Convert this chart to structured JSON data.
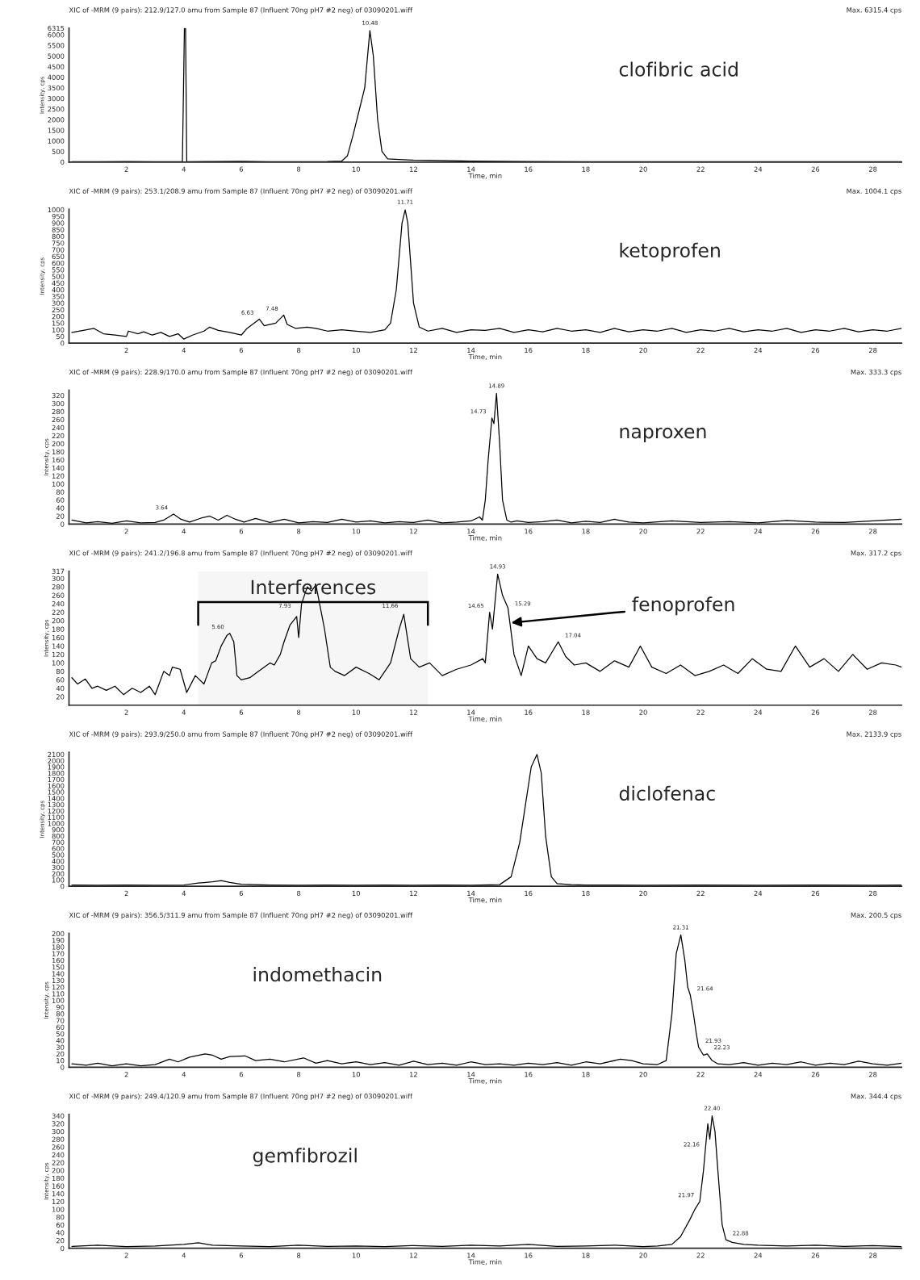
{
  "chart_data": [
    {
      "type": "line",
      "title": "XIC of -MRM (9 pairs): 212.9/127.0 amu from Sample 87 (Influent 70ng pH7 #2 neg) of 03090201.wiff",
      "subtitle": "Max. 6315.4 cps",
      "xlabel": "Time, min",
      "ylabel": "Intensity, cps",
      "xlim": [
        0,
        29
      ],
      "xticks": [
        2,
        4,
        6,
        8,
        10,
        12,
        14,
        16,
        18,
        20,
        22,
        24,
        26,
        28
      ],
      "ylim": [
        0,
        6315
      ],
      "yticks": [
        0,
        500,
        1000,
        1500,
        2000,
        2500,
        3000,
        3500,
        4000,
        4500,
        5000,
        5500,
        6000,
        {
          "value": 6315,
          "label": "6315"
        }
      ],
      "grid": false,
      "legend": false,
      "annotations": [
        "clofibric acid",
        {
          "text": "10.48",
          "x": 10.48,
          "y": 6200
        }
      ],
      "series": [
        {
          "color": "#000000",
          "x": [
            0.1,
            1,
            2,
            3,
            3.95,
            4.02,
            4.06,
            4.1,
            5,
            6,
            7,
            8,
            9,
            9.5,
            9.7,
            9.9,
            10.1,
            10.3,
            10.48,
            10.6,
            10.75,
            10.9,
            11.1,
            11.5,
            12,
            13,
            14,
            15,
            16,
            18,
            20,
            22,
            24,
            26,
            28,
            29
          ],
          "values": [
            20,
            20,
            30,
            20,
            20,
            6315,
            6315,
            20,
            30,
            40,
            20,
            20,
            30,
            50,
            300,
            1300,
            2400,
            3500,
            6200,
            5000,
            2000,
            500,
            150,
            120,
            90,
            70,
            50,
            40,
            30,
            20,
            20,
            20,
            20,
            20,
            20,
            20
          ]
        }
      ]
    },
    {
      "type": "line",
      "title": "XIC of -MRM (9 pairs): 253.1/208.9 amu from Sample 87 (Influent 70ng pH7 #2 neg) of 03090201.wiff",
      "subtitle": "Max. 1004.1 cps",
      "xlabel": "Time, min",
      "ylabel": "Intensity, cps",
      "xlim": [
        0,
        29
      ],
      "xticks": [
        2,
        4,
        6,
        8,
        10,
        12,
        14,
        16,
        18,
        20,
        22,
        24,
        26,
        28
      ],
      "ylim": [
        0,
        1004
      ],
      "yticks": [
        0,
        50,
        100,
        150,
        200,
        250,
        300,
        350,
        400,
        450,
        500,
        550,
        600,
        650,
        700,
        750,
        800,
        850,
        900,
        950,
        1000
      ],
      "grid": false,
      "legend": false,
      "annotations": [
        "ketoprofen",
        {
          "text": "11.71",
          "x": 11.71,
          "y": 1000
        },
        {
          "text": "7.48",
          "x": 7.48,
          "y": 210
        },
        {
          "text": "6.63",
          "x": 6.63,
          "y": 180
        }
      ],
      "series": [
        {
          "color": "#000000",
          "x": [
            0.1,
            0.5,
            0.87,
            1.2,
            1.6,
            2.0,
            2.07,
            2.4,
            2.6,
            2.9,
            3.2,
            3.5,
            3.8,
            4.0,
            4.3,
            4.7,
            4.9,
            5.2,
            5.6,
            6.0,
            6.2,
            6.63,
            6.8,
            7.2,
            7.48,
            7.6,
            7.9,
            8.3,
            8.6,
            9.0,
            9.5,
            10.0,
            10.5,
            11.0,
            11.2,
            11.4,
            11.6,
            11.71,
            11.8,
            12.0,
            12.2,
            12.5,
            13.0,
            13.5,
            14.0,
            14.5,
            15.0,
            15.5,
            16.0,
            16.5,
            17.0,
            17.5,
            18.0,
            18.5,
            19.0,
            19.5,
            20,
            20.5,
            21,
            21.5,
            22,
            22.5,
            23,
            23.5,
            24,
            24.5,
            25,
            25.5,
            26,
            26.5,
            27,
            27.5,
            28,
            28.5,
            29
          ],
          "values": [
            80,
            95,
            110,
            70,
            60,
            50,
            90,
            70,
            85,
            60,
            80,
            50,
            70,
            30,
            60,
            90,
            120,
            95,
            80,
            60,
            110,
            180,
            130,
            150,
            210,
            140,
            110,
            120,
            110,
            90,
            100,
            90,
            80,
            100,
            150,
            400,
            900,
            1000,
            900,
            300,
            120,
            90,
            110,
            80,
            100,
            95,
            110,
            80,
            100,
            85,
            110,
            90,
            100,
            80,
            110,
            85,
            100,
            90,
            110,
            80,
            100,
            90,
            110,
            85,
            100,
            90,
            110,
            80,
            100,
            90,
            110,
            85,
            100,
            90,
            110
          ]
        }
      ]
    },
    {
      "type": "line",
      "title": "XIC of -MRM (9 pairs): 228.9/170.0 amu from Sample 87 (Influent 70ng pH7 #2 neg) of 03090201.wiff",
      "subtitle": "Max. 333.3 cps",
      "xlabel": "Time, min",
      "ylabel": "Intensity, cps",
      "xlim": [
        0,
        29
      ],
      "xticks": [
        2,
        4,
        6,
        8,
        10,
        12,
        14,
        16,
        18,
        20,
        22,
        24,
        26,
        28
      ],
      "ylim": [
        0,
        333
      ],
      "yticks": [
        0,
        20,
        40,
        60,
        80,
        100,
        120,
        140,
        160,
        180,
        200,
        220,
        240,
        260,
        280,
        300,
        320
      ],
      "grid": false,
      "legend": false,
      "annotations": [
        "naproxen",
        {
          "text": "14.89",
          "x": 14.89,
          "y": 325
        },
        {
          "text": "14.73",
          "x": 14.73,
          "y": 264
        },
        {
          "text": "3.64",
          "x": 3.64,
          "y": 25
        }
      ],
      "series": [
        {
          "color": "#000000",
          "x": [
            0.1,
            0.6,
            1.0,
            1.5,
            2.0,
            2.5,
            3.0,
            3.3,
            3.64,
            3.9,
            4.2,
            4.6,
            4.9,
            5.2,
            5.5,
            5.8,
            6.1,
            6.5,
            7.0,
            7.5,
            8.0,
            8.5,
            9.0,
            9.5,
            10.0,
            10.5,
            11.0,
            11.5,
            12.0,
            12.5,
            13.0,
            13.5,
            14.0,
            14.3,
            14.4,
            14.5,
            14.6,
            14.73,
            14.8,
            14.89,
            15.0,
            15.1,
            15.25,
            15.4,
            15.6,
            16,
            16.5,
            17,
            17.5,
            18,
            18.5,
            19,
            19.5,
            20,
            21,
            22,
            23,
            24,
            25,
            26,
            27,
            28,
            29
          ],
          "values": [
            10,
            3,
            6,
            2,
            8,
            3,
            4,
            10,
            25,
            12,
            5,
            15,
            20,
            10,
            22,
            12,
            5,
            14,
            4,
            12,
            3,
            6,
            4,
            12,
            5,
            8,
            3,
            6,
            4,
            10,
            3,
            5,
            8,
            18,
            10,
            60,
            160,
            264,
            250,
            325,
            200,
            60,
            10,
            5,
            8,
            4,
            6,
            10,
            3,
            7,
            4,
            12,
            5,
            3,
            8,
            4,
            6,
            3,
            9,
            5,
            4,
            8,
            12
          ]
        }
      ]
    },
    {
      "type": "line",
      "title": "XIC of -MRM (9 pairs): 241.2/196.8 amu from Sample 87 (Influent 70ng pH7 #2 neg) of 03090201.wiff",
      "subtitle": "Max. 317.2 cps",
      "xlabel": "Time, min",
      "ylabel": "Intensity, cps",
      "xlim": [
        0,
        29
      ],
      "xticks": [
        2,
        4,
        6,
        8,
        10,
        12,
        14,
        16,
        18,
        20,
        22,
        24,
        26,
        28
      ],
      "ylim": [
        0,
        317
      ],
      "yticks": [
        20,
        40,
        60,
        80,
        100,
        120,
        140,
        160,
        180,
        200,
        220,
        240,
        260,
        280,
        300,
        {
          "value": 317,
          "label": "317"
        }
      ],
      "grid": false,
      "legend": false,
      "annotations": [
        {
          "text": "fenoprofen",
          "x": 15.4,
          "y": 195
        },
        {
          "text": "14.93",
          "x": 14.93,
          "y": 310
        },
        {
          "text": "15.29",
          "x": 15.29,
          "y": 225
        },
        {
          "text": "14.65",
          "x": 14.65,
          "y": 220
        },
        {
          "text": "11.66",
          "x": 11.66,
          "y": 220
        },
        {
          "text": "7.93",
          "x": 7.93,
          "y": 220
        },
        {
          "text": "17.04",
          "x": 17.04,
          "y": 150
        },
        {
          "text": "5.60",
          "x": 5.6,
          "y": 170
        }
      ],
      "bands": [
        {
          "axis": "x",
          "from": 4.5,
          "to": 12.5,
          "label": "Interferences"
        }
      ],
      "series": [
        {
          "color": "#000000",
          "x": [
            0.1,
            0.3,
            0.57,
            0.8,
            1.0,
            1.3,
            1.6,
            1.9,
            2.2,
            2.5,
            2.8,
            3.0,
            3.3,
            3.5,
            3.6,
            3.87,
            4.1,
            4.4,
            4.7,
            4.97,
            5.11,
            5.3,
            5.5,
            5.6,
            5.74,
            5.85,
            6.0,
            6.3,
            6.6,
            7.0,
            7.15,
            7.36,
            7.49,
            7.7,
            7.93,
            8.0,
            8.1,
            8.3,
            8.45,
            8.6,
            8.9,
            9.1,
            9.27,
            9.6,
            10.0,
            10.45,
            10.8,
            11.2,
            11.5,
            11.66,
            11.9,
            12.2,
            12.56,
            13.0,
            13.5,
            14.0,
            14.41,
            14.5,
            14.65,
            14.75,
            14.93,
            15.1,
            15.29,
            15.5,
            15.75,
            16.0,
            16.3,
            16.6,
            17.04,
            17.3,
            17.6,
            18.0,
            18.5,
            19.0,
            19.5,
            19.9,
            20.3,
            20.8,
            21.3,
            21.8,
            22.3,
            22.8,
            23.3,
            23.8,
            24.3,
            24.8,
            25.3,
            25.8,
            26.3,
            26.8,
            27.3,
            27.8,
            28.3,
            28.8,
            29
          ],
          "values": [
            65,
            50,
            62,
            40,
            45,
            35,
            45,
            25,
            40,
            30,
            45,
            25,
            80,
            70,
            90,
            85,
            30,
            70,
            50,
            100,
            105,
            140,
            165,
            170,
            150,
            70,
            60,
            65,
            80,
            100,
            95,
            120,
            150,
            190,
            210,
            160,
            240,
            280,
            270,
            285,
            180,
            90,
            80,
            70,
            90,
            75,
            60,
            100,
            180,
            215,
            110,
            90,
            100,
            70,
            85,
            95,
            110,
            100,
            220,
            180,
            310,
            260,
            230,
            120,
            70,
            140,
            110,
            100,
            150,
            115,
            95,
            100,
            80,
            105,
            90,
            140,
            90,
            75,
            95,
            70,
            80,
            95,
            75,
            110,
            85,
            80,
            140,
            90,
            110,
            80,
            120,
            85,
            100,
            95,
            90
          ]
        }
      ]
    },
    {
      "type": "line",
      "title": "XIC of -MRM (9 pairs): 293.9/250.0 amu from Sample 87 (Influent 70ng pH7 #2 neg) of 03090201.wiff",
      "subtitle": "Max. 2133.9 cps",
      "xlabel": "Time, min",
      "ylabel": "Intensity, cps",
      "xlim": [
        0,
        29
      ],
      "xticks": [
        2,
        4,
        6,
        8,
        10,
        12,
        14,
        16,
        18,
        20,
        22,
        24,
        26,
        28
      ],
      "ylim": [
        0,
        2134
      ],
      "yticks": [
        0,
        100,
        200,
        300,
        400,
        500,
        600,
        700,
        800,
        900,
        1000,
        1100,
        1200,
        1300,
        1400,
        1500,
        1600,
        1700,
        1800,
        1900,
        2000,
        2100
      ],
      "grid": false,
      "legend": false,
      "annotations": [
        "diclofenac"
      ],
      "series": [
        {
          "color": "#000000",
          "x": [
            0.1,
            1,
            2,
            3,
            4,
            4.5,
            5.0,
            5.3,
            5.6,
            6.0,
            7,
            8,
            9,
            10,
            11,
            12,
            13,
            14,
            15,
            15.4,
            15.7,
            15.9,
            16.1,
            16.3,
            16.45,
            16.6,
            16.8,
            17.0,
            17.5,
            18,
            20,
            22,
            24,
            26,
            28,
            29
          ],
          "values": [
            20,
            15,
            20,
            15,
            20,
            50,
            70,
            90,
            60,
            30,
            20,
            15,
            20,
            15,
            20,
            15,
            20,
            15,
            25,
            150,
            700,
            1300,
            1900,
            2100,
            1800,
            800,
            150,
            40,
            25,
            20,
            15,
            20,
            15,
            20,
            15,
            20
          ]
        }
      ]
    },
    {
      "type": "line",
      "title": "XIC of -MRM (9 pairs): 356.5/311.9 amu from Sample 87 (Influent 70ng pH7 #2 neg) of 03090201.wiff",
      "subtitle": "Max. 200.5 cps",
      "xlabel": "Time, min",
      "ylabel": "Intensity, cps",
      "xlim": [
        0,
        29
      ],
      "xticks": [
        2,
        4,
        6,
        8,
        10,
        12,
        14,
        16,
        18,
        20,
        22,
        24,
        26,
        28
      ],
      "ylim": [
        0,
        200.5
      ],
      "yticks": [
        0,
        10,
        20,
        30,
        40,
        50,
        60,
        70,
        80,
        90,
        100,
        110,
        120,
        130,
        140,
        150,
        160,
        170,
        180,
        190,
        200
      ],
      "grid": false,
      "legend": false,
      "annotations": [
        "indomethacin",
        {
          "text": "21.31",
          "x": 21.31,
          "y": 198
        },
        {
          "text": "21.64",
          "x": 21.64,
          "y": 108
        },
        {
          "text": "21.93",
          "x": 21.93,
          "y": 30
        },
        {
          "text": "22.23",
          "x": 22.23,
          "y": 20
        }
      ],
      "series": [
        {
          "color": "#000000",
          "x": [
            0.1,
            0.6,
            1.0,
            1.5,
            2.0,
            2.5,
            3.0,
            3.5,
            3.8,
            4.2,
            4.74,
            5.0,
            5.3,
            5.6,
            6.13,
            6.5,
            7.0,
            7.5,
            8.17,
            8.6,
            9.0,
            9.5,
            10,
            10.5,
            11,
            11.5,
            12,
            12.5,
            13,
            13.5,
            14,
            14.5,
            15,
            15.5,
            16,
            16.5,
            17,
            17.5,
            18,
            18.5,
            19.2,
            19.6,
            20,
            20.5,
            20.8,
            21.0,
            21.15,
            21.31,
            21.45,
            21.55,
            21.64,
            21.75,
            21.85,
            21.93,
            22.1,
            22.23,
            22.4,
            22.6,
            23,
            23.5,
            24,
            24.5,
            25,
            25.5,
            26,
            26.5,
            27,
            27.5,
            28,
            28.5,
            29
          ],
          "values": [
            5,
            3,
            6,
            2,
            5,
            2,
            4,
            12,
            8,
            15,
            20,
            18,
            12,
            16,
            17,
            10,
            12,
            8,
            14,
            6,
            10,
            5,
            8,
            4,
            7,
            3,
            9,
            4,
            6,
            3,
            8,
            4,
            5,
            3,
            6,
            4,
            7,
            3,
            8,
            5,
            12,
            10,
            5,
            4,
            10,
            80,
            170,
            198,
            160,
            120,
            108,
            80,
            50,
            30,
            18,
            20,
            10,
            5,
            4,
            7,
            3,
            6,
            4,
            8,
            3,
            6,
            4,
            9,
            5,
            3,
            6
          ]
        }
      ]
    },
    {
      "type": "line",
      "title": "XIC of -MRM (9 pairs): 249.4/120.9 amu from Sample 87 (Influent 70ng pH7 #2 neg) of 03090201.wiff",
      "subtitle": "Max. 344.4 cps",
      "xlabel": "Time, min",
      "ylabel": "Intensity, cps",
      "xlim": [
        0,
        29
      ],
      "xticks": [
        2,
        4,
        6,
        8,
        10,
        12,
        14,
        16,
        18,
        20,
        22,
        24,
        26,
        28
      ],
      "ylim": [
        0,
        344
      ],
      "yticks": [
        0,
        20,
        40,
        60,
        80,
        100,
        120,
        140,
        160,
        180,
        200,
        220,
        240,
        260,
        280,
        300,
        320,
        340
      ],
      "grid": false,
      "legend": false,
      "annotations": [
        "gemfibrozil",
        {
          "text": "22.40",
          "x": 22.4,
          "y": 340
        },
        {
          "text": "22.16",
          "x": 22.16,
          "y": 250
        },
        {
          "text": "21.97",
          "x": 21.97,
          "y": 120
        },
        {
          "text": "22.88",
          "x": 22.88,
          "y": 22
        }
      ],
      "series": [
        {
          "color": "#000000",
          "x": [
            0.1,
            1,
            2,
            3,
            4,
            4.5,
            5,
            6,
            7,
            8,
            9,
            10,
            11,
            12,
            13,
            14,
            15,
            16,
            17,
            18,
            19,
            20,
            20.5,
            21,
            21.3,
            21.6,
            21.8,
            21.97,
            22.1,
            22.16,
            22.25,
            22.32,
            22.4,
            22.5,
            22.6,
            22.75,
            22.88,
            23.1,
            23.5,
            24,
            25,
            26,
            27,
            28,
            29
          ],
          "values": [
            5,
            8,
            4,
            6,
            10,
            14,
            8,
            6,
            4,
            8,
            5,
            6,
            4,
            7,
            5,
            8,
            6,
            10,
            5,
            6,
            8,
            4,
            6,
            10,
            30,
            70,
            100,
            120,
            200,
            250,
            320,
            280,
            340,
            300,
            200,
            60,
            22,
            15,
            10,
            8,
            6,
            8,
            5,
            7,
            4
          ]
        }
      ]
    }
  ]
}
